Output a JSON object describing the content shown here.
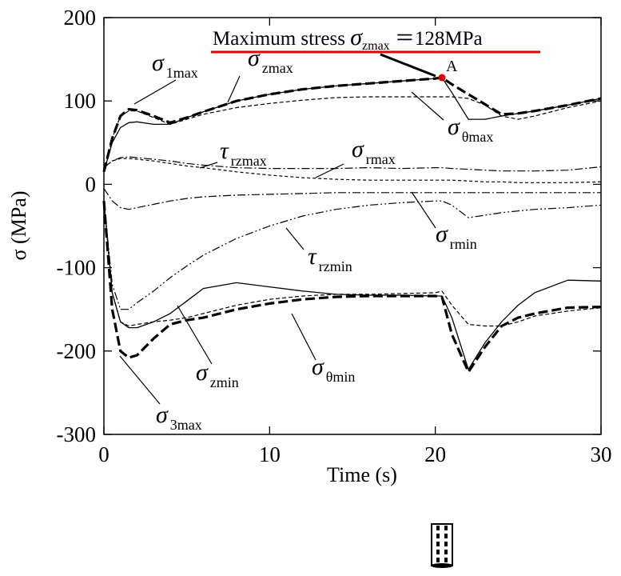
{
  "chart_data": {
    "type": "line",
    "x_label": "Time (s)",
    "y_label": "σ (MPa)",
    "xlim": [
      0,
      30
    ],
    "xticks": [
      0,
      10,
      20,
      30
    ],
    "ylim": [
      -300,
      200
    ],
    "yticks": [
      -300,
      -200,
      -100,
      0,
      100,
      200
    ],
    "x": [
      0,
      0.5,
      1,
      1.5,
      2,
      3,
      4,
      5,
      6,
      8,
      10,
      12,
      14,
      16,
      18,
      20,
      20.4,
      21,
      22,
      23,
      24,
      25,
      26,
      28,
      30
    ],
    "series": [
      {
        "name": "σzmax",
        "color": "#000000",
        "width": 3.2,
        "dash": "12,5",
        "values": [
          15,
          55,
          82,
          90,
          89,
          82,
          74,
          80,
          87,
          100,
          108,
          114,
          118,
          121,
          124,
          127,
          128,
          120,
          108,
          96,
          84,
          85,
          88,
          95,
          103
        ]
      },
      {
        "name": "σ1max",
        "color": "#000000",
        "width": 1.3,
        "dash": "none",
        "values": [
          15,
          50,
          68,
          74,
          75,
          72,
          72,
          80,
          87,
          100,
          108,
          114,
          118,
          121,
          124,
          127,
          128,
          110,
          78,
          78,
          82,
          85,
          88,
          95,
          103
        ]
      },
      {
        "name": "σθmax",
        "color": "#000000",
        "width": 1.2,
        "dash": "5,3",
        "values": [
          15,
          55,
          82,
          88,
          88,
          80,
          72,
          78,
          84,
          92,
          97,
          101,
          104,
          105,
          105,
          105,
          105,
          105,
          103,
          95,
          82,
          78,
          82,
          92,
          100
        ]
      },
      {
        "name": "τrzmax",
        "color": "#000000",
        "width": 1.2,
        "dash": "10,3,2,3",
        "values": [
          20,
          28,
          32,
          33,
          32,
          30,
          28,
          25,
          23,
          20,
          19,
          19,
          19,
          20,
          19,
          20,
          20,
          19,
          18,
          17,
          16,
          16,
          16,
          17,
          21
        ]
      },
      {
        "name": "σrmax",
        "color": "#000000",
        "width": 1.2,
        "dash": "4,3",
        "values": [
          20,
          28,
          31,
          31,
          30,
          28,
          25,
          22,
          20,
          15,
          11,
          8,
          6,
          5,
          5,
          5,
          5,
          5,
          4,
          3,
          3,
          2,
          2,
          2,
          3
        ]
      },
      {
        "name": "σrmin",
        "color": "#000000",
        "width": 1.2,
        "dash": "10,3,2,3",
        "values": [
          -5,
          -20,
          -28,
          -30,
          -28,
          -24,
          -20,
          -17,
          -15,
          -13,
          -12,
          -11,
          -10,
          -10,
          -10,
          -10,
          -10,
          -10,
          -10,
          -10,
          -10,
          -10,
          -10,
          -10,
          -10
        ]
      },
      {
        "name": "τrzmin",
        "color": "#000000",
        "width": 1.2,
        "dash": "10,3,2,3,2,3",
        "values": [
          -20,
          -120,
          -150,
          -150,
          -142,
          -128,
          -112,
          -98,
          -85,
          -65,
          -50,
          -38,
          -30,
          -25,
          -22,
          -20,
          -20,
          -25,
          -40,
          -37,
          -34,
          -32,
          -30,
          -28,
          -25
        ]
      },
      {
        "name": "σzmin",
        "color": "#000000",
        "width": 1.3,
        "dash": "none",
        "values": [
          -20,
          -130,
          -165,
          -172,
          -172,
          -165,
          -155,
          -140,
          -125,
          -118,
          -123,
          -128,
          -132,
          -133,
          -133,
          -134,
          -134,
          -160,
          -222,
          -190,
          -165,
          -145,
          -130,
          -115,
          -116
        ]
      },
      {
        "name": "σθmin",
        "color": "#000000",
        "width": 1.2,
        "dash": "5,3",
        "values": [
          -20,
          -130,
          -165,
          -170,
          -168,
          -165,
          -163,
          -160,
          -155,
          -145,
          -138,
          -134,
          -132,
          -132,
          -131,
          -130,
          -128,
          -145,
          -168,
          -170,
          -170,
          -165,
          -158,
          -152,
          -148
        ]
      },
      {
        "name": "σ3max",
        "color": "#000000",
        "width": 3.2,
        "dash": "12,5",
        "values": [
          -20,
          -150,
          -200,
          -208,
          -205,
          -185,
          -168,
          -163,
          -160,
          -150,
          -143,
          -138,
          -135,
          -134,
          -134,
          -134,
          -135,
          -180,
          -225,
          -195,
          -170,
          -160,
          -155,
          -148,
          -147
        ]
      }
    ],
    "annotation": {
      "parts": [
        "Maximum stress ",
        "σ",
        "zmax",
        " ＝128MPa"
      ],
      "color": "#e00000"
    },
    "point": {
      "label": "A",
      "x": 20.4,
      "y": 128,
      "color": "#e00000"
    }
  }
}
